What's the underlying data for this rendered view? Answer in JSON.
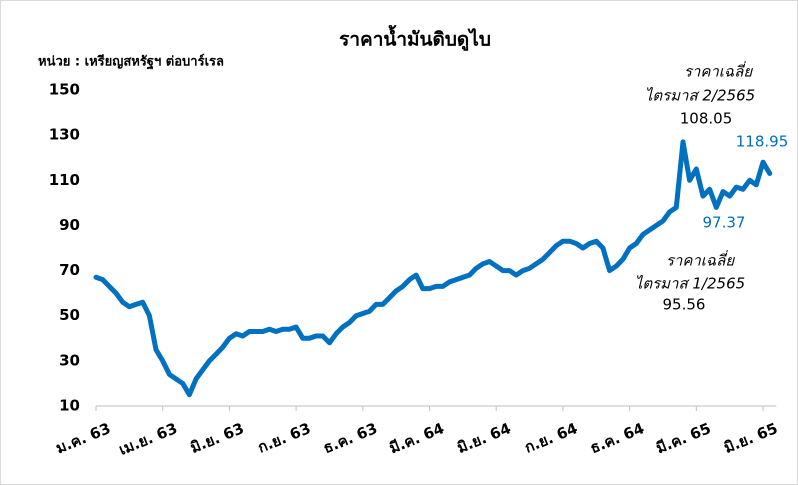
{
  "chart_data": {
    "type": "line",
    "title": "ราคาน้ำมันดิบดูไบ",
    "y_label": "หน่วย : เหรียญสหรัฐฯ ต่อบาร์เรล",
    "xlim": [
      0,
      102
    ],
    "xticks": [
      {
        "value": 0,
        "label": "ม.ค. 63"
      },
      {
        "value": 10,
        "label": "เม.ย. 63"
      },
      {
        "value": 20,
        "label": "มิ.ย. 63"
      },
      {
        "value": 30,
        "label": "ก.ย. 63"
      },
      {
        "value": 40,
        "label": "ธ.ค. 63"
      },
      {
        "value": 50,
        "label": "มี.ค. 64"
      },
      {
        "value": 60,
        "label": "มิ.ย. 64"
      },
      {
        "value": 70,
        "label": "ก.ย. 64"
      },
      {
        "value": 80,
        "label": "ธ.ค. 64"
      },
      {
        "value": 90,
        "label": "มี.ค. 65"
      },
      {
        "value": 100,
        "label": "มิ.ย. 65"
      }
    ],
    "ylim": [
      10,
      150
    ],
    "yticks": [
      10,
      30,
      50,
      70,
      90,
      110,
      130,
      150
    ],
    "grid": false,
    "series": [
      {
        "color": "#0070c0",
        "x": [
          0,
          1,
          2,
          3,
          4,
          5,
          6,
          7,
          8,
          9,
          10,
          11,
          12,
          13,
          14,
          15,
          16,
          17,
          18,
          19,
          20,
          21,
          22,
          23,
          24,
          25,
          26,
          27,
          28,
          29,
          30,
          31,
          32,
          33,
          34,
          35,
          36,
          37,
          38,
          39,
          40,
          41,
          42,
          43,
          44,
          45,
          46,
          47,
          48,
          49,
          50,
          51,
          52,
          53,
          54,
          55,
          56,
          57,
          58,
          59,
          60,
          61,
          62,
          63,
          64,
          65,
          66,
          67,
          68,
          69,
          70,
          71,
          72,
          73,
          74,
          75,
          76,
          77,
          78,
          79,
          80,
          81,
          82,
          83,
          84,
          85,
          86,
          87,
          88,
          89,
          90,
          91,
          92,
          93,
          94,
          95,
          96,
          97,
          98,
          99,
          100,
          101
        ],
        "values": [
          67,
          66,
          63,
          60,
          56,
          54,
          55,
          56,
          50,
          35,
          30,
          24,
          22,
          20,
          15,
          22,
          26,
          30,
          33,
          36,
          40,
          42,
          41,
          43,
          43,
          43,
          44,
          43,
          44,
          44,
          45,
          40,
          40,
          41,
          41,
          38,
          42,
          45,
          47,
          50,
          51,
          52,
          55,
          55,
          58,
          61,
          63,
          66,
          68,
          62,
          62,
          63,
          63,
          65,
          66,
          67,
          68,
          71,
          73,
          74,
          72,
          70,
          70,
          68,
          70,
          71,
          73,
          75,
          78,
          81,
          83,
          83,
          82,
          80,
          82,
          83,
          80,
          70,
          72,
          75,
          80,
          82,
          86,
          88,
          90,
          92,
          96,
          98,
          127,
          110,
          115,
          103,
          106,
          98,
          105,
          103,
          107,
          106,
          110,
          108,
          118,
          113
        ]
      }
    ],
    "annotations": [
      {
        "lines": [
          "ราคาเฉลี่ย",
          "ไตรมาส 2/2565"
        ],
        "value": "108.05"
      },
      {
        "value": "118.95"
      },
      {
        "value": "97.37"
      },
      {
        "lines": [
          "ราคาเฉลี่ย",
          "ไตรมาส 1/2565"
        ],
        "value": "95.56"
      }
    ]
  }
}
